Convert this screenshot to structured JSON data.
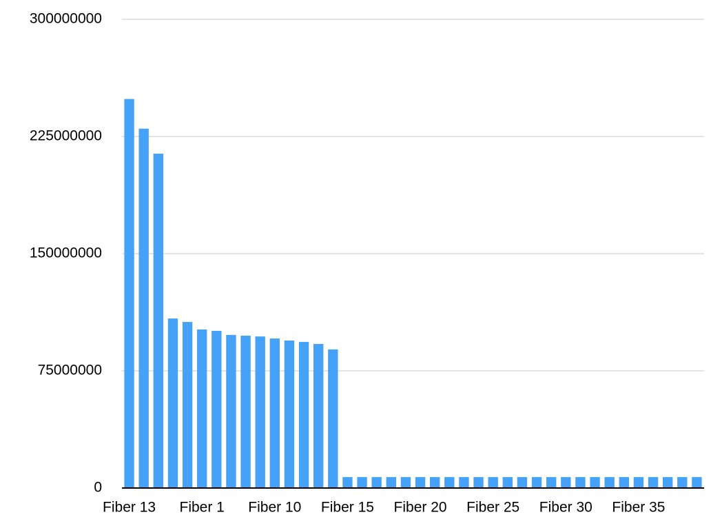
{
  "chart_data": {
    "type": "bar",
    "categories": [
      "Fiber 13",
      null,
      null,
      null,
      null,
      "Fiber 1",
      null,
      null,
      null,
      null,
      "Fiber 10",
      null,
      null,
      null,
      null,
      "Fiber 15",
      null,
      null,
      null,
      null,
      "Fiber 20",
      null,
      null,
      null,
      null,
      "Fiber 25",
      null,
      null,
      null,
      null,
      "Fiber 30",
      null,
      null,
      null,
      null,
      "Fiber 35",
      null,
      null,
      null,
      null
    ],
    "values": [
      249000000,
      230000000,
      214000000,
      108500000,
      106300000,
      101500000,
      100600000,
      98000000,
      97500000,
      97000000,
      95700000,
      94400000,
      93500000,
      92200000,
      88700000,
      7000000,
      7000000,
      7000000,
      7000000,
      7000000,
      7000000,
      7000000,
      7000000,
      7000000,
      7000000,
      7000000,
      7000000,
      7000000,
      7000000,
      7000000,
      7000000,
      7000000,
      7000000,
      7000000,
      7000000,
      7000000,
      7000000,
      7000000,
      7000000,
      7000000
    ],
    "color": "#46a2f6",
    "ylim": [
      0,
      300000000
    ],
    "yticks": [
      0,
      75000000,
      150000000,
      225000000,
      300000000
    ],
    "grid": true
  }
}
